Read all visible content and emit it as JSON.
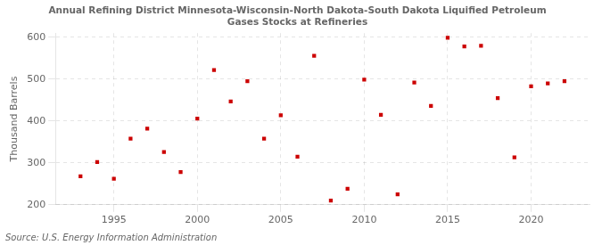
{
  "chart_data": {
    "type": "scatter",
    "title": "Annual Refining District Minnesota-Wisconsin-North Dakota-South Dakota Liquified Petroleum\nGases Stocks at Refineries",
    "ylabel": "Thousand Barrels",
    "source": "Source: U.S. Energy Information Administration",
    "x": [
      1993,
      1994,
      1995,
      1996,
      1997,
      1998,
      1999,
      2000,
      2001,
      2002,
      2003,
      2004,
      2005,
      2006,
      2007,
      2008,
      2009,
      2010,
      2011,
      2012,
      2013,
      2014,
      2015,
      2016,
      2017,
      2018,
      2019,
      2020,
      2021,
      2022
    ],
    "values": [
      268,
      302,
      262,
      358,
      382,
      326,
      278,
      406,
      522,
      447,
      495,
      358,
      414,
      315,
      556,
      210,
      238,
      499,
      415,
      225,
      492,
      436,
      599,
      578,
      580,
      455,
      313,
      483,
      490,
      495
    ],
    "color": "#cc0000",
    "marker": "square",
    "xlim": [
      1991.5,
      2023.5
    ],
    "ylim": [
      200,
      610
    ],
    "xticks": [
      1995,
      2000,
      2005,
      2010,
      2015,
      2020
    ],
    "yticks": [
      200,
      300,
      400,
      500,
      600
    ],
    "grid": true,
    "legend": false
  }
}
